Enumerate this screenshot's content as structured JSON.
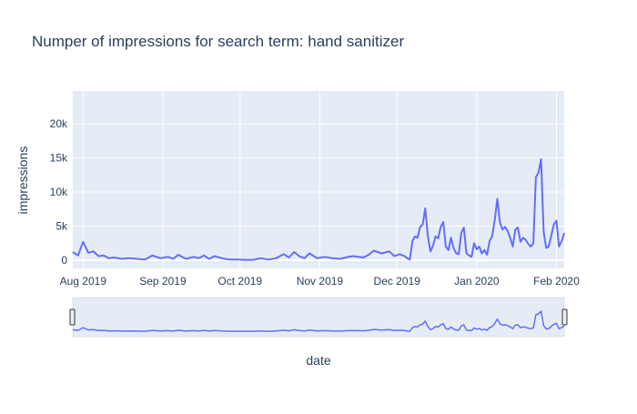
{
  "chart_data": {
    "type": "line",
    "title": "Numper of impressions for search term: hand sanitizer",
    "xlabel": "date",
    "ylabel": "impressions",
    "x_range": [
      "2019-07-28",
      "2020-02-04"
    ],
    "ylim": [
      -1200,
      24800
    ],
    "y_ticks": [
      {
        "value": 0,
        "label": "0"
      },
      {
        "value": 5000,
        "label": "5k"
      },
      {
        "value": 10000,
        "label": "10k"
      },
      {
        "value": 15000,
        "label": "15k"
      },
      {
        "value": 20000,
        "label": "20k"
      }
    ],
    "x_ticks": [
      {
        "date": "2019-08-01",
        "label": "Aug 2019"
      },
      {
        "date": "2019-09-01",
        "label": "Sep 2019"
      },
      {
        "date": "2019-10-01",
        "label": "Oct 2019"
      },
      {
        "date": "2019-11-01",
        "label": "Nov 2019"
      },
      {
        "date": "2019-12-01",
        "label": "Dec 2019"
      },
      {
        "date": "2020-01-01",
        "label": "Jan 2020"
      },
      {
        "date": "2020-02-01",
        "label": "Feb 2020"
      }
    ],
    "grid": true,
    "rangeslider": true,
    "color": "#636efa",
    "series": [
      {
        "x": [
          "2019-07-28",
          "2019-07-30",
          "2019-08-01",
          "2019-08-03",
          "2019-08-05",
          "2019-08-07",
          "2019-08-09",
          "2019-08-11",
          "2019-08-13",
          "2019-08-16",
          "2019-08-19",
          "2019-08-22",
          "2019-08-25",
          "2019-08-28",
          "2019-08-31",
          "2019-09-03",
          "2019-09-05",
          "2019-09-07",
          "2019-09-10",
          "2019-09-13",
          "2019-09-15",
          "2019-09-17",
          "2019-09-19",
          "2019-09-21",
          "2019-09-24",
          "2019-09-27",
          "2019-09-30",
          "2019-10-03",
          "2019-10-06",
          "2019-10-09",
          "2019-10-12",
          "2019-10-15",
          "2019-10-18",
          "2019-10-20",
          "2019-10-22",
          "2019-10-24",
          "2019-10-26",
          "2019-10-28",
          "2019-10-31",
          "2019-11-03",
          "2019-11-06",
          "2019-11-09",
          "2019-11-12",
          "2019-11-14",
          "2019-11-16",
          "2019-11-18",
          "2019-11-20",
          "2019-11-22",
          "2019-11-25",
          "2019-11-28",
          "2019-11-30",
          "2019-12-02",
          "2019-12-04",
          "2019-12-05",
          "2019-12-06",
          "2019-12-07",
          "2019-12-08",
          "2019-12-09",
          "2019-12-10",
          "2019-12-11",
          "2019-12-12",
          "2019-12-13",
          "2019-12-14",
          "2019-12-15",
          "2019-12-16",
          "2019-12-17",
          "2019-12-18",
          "2019-12-19",
          "2019-12-20",
          "2019-12-21",
          "2019-12-22",
          "2019-12-23",
          "2019-12-24",
          "2019-12-25",
          "2019-12-26",
          "2019-12-27",
          "2019-12-28",
          "2019-12-29",
          "2019-12-30",
          "2019-12-31",
          "2020-01-01",
          "2020-01-02",
          "2020-01-03",
          "2020-01-04",
          "2020-01-05",
          "2020-01-06",
          "2020-01-07",
          "2020-01-08",
          "2020-01-09",
          "2020-01-10",
          "2020-01-11",
          "2020-01-12",
          "2020-01-13",
          "2020-01-14",
          "2020-01-15",
          "2020-01-16",
          "2020-01-17",
          "2020-01-18",
          "2020-01-19",
          "2020-01-20",
          "2020-01-21",
          "2020-01-22",
          "2020-01-23",
          "2020-01-24",
          "2020-01-25",
          "2020-01-26",
          "2020-01-27",
          "2020-01-28",
          "2020-01-29",
          "2020-01-30",
          "2020-01-31",
          "2020-02-01",
          "2020-02-02",
          "2020-02-03",
          "2020-02-04"
        ],
        "y": [
          1200,
          700,
          2700,
          1100,
          1300,
          600,
          700,
          300,
          400,
          200,
          300,
          200,
          100,
          700,
          300,
          500,
          200,
          800,
          200,
          500,
          300,
          700,
          200,
          600,
          300,
          100,
          100,
          50,
          50,
          300,
          100,
          300,
          900,
          400,
          1200,
          600,
          300,
          1000,
          300,
          500,
          300,
          200,
          500,
          600,
          500,
          400,
          800,
          1400,
          1000,
          1300,
          600,
          900,
          600,
          300,
          100,
          2800,
          3500,
          3300,
          4900,
          5200,
          7600,
          3500,
          1300,
          2100,
          3500,
          3200,
          4900,
          5600,
          2000,
          1500,
          3300,
          1800,
          1000,
          900,
          4000,
          4800,
          1000,
          700,
          500,
          2500,
          1600,
          2000,
          1000,
          1500,
          800,
          2800,
          3500,
          5900,
          9000,
          5600,
          4500,
          4900,
          4300,
          3300,
          2000,
          4500,
          4800,
          2700,
          3300,
          3000,
          2400,
          2000,
          2500,
          12200,
          12800,
          14800,
          4200,
          1800,
          2000,
          3700,
          5300,
          5800,
          2000,
          2800,
          4000
        ]
      }
    ]
  }
}
